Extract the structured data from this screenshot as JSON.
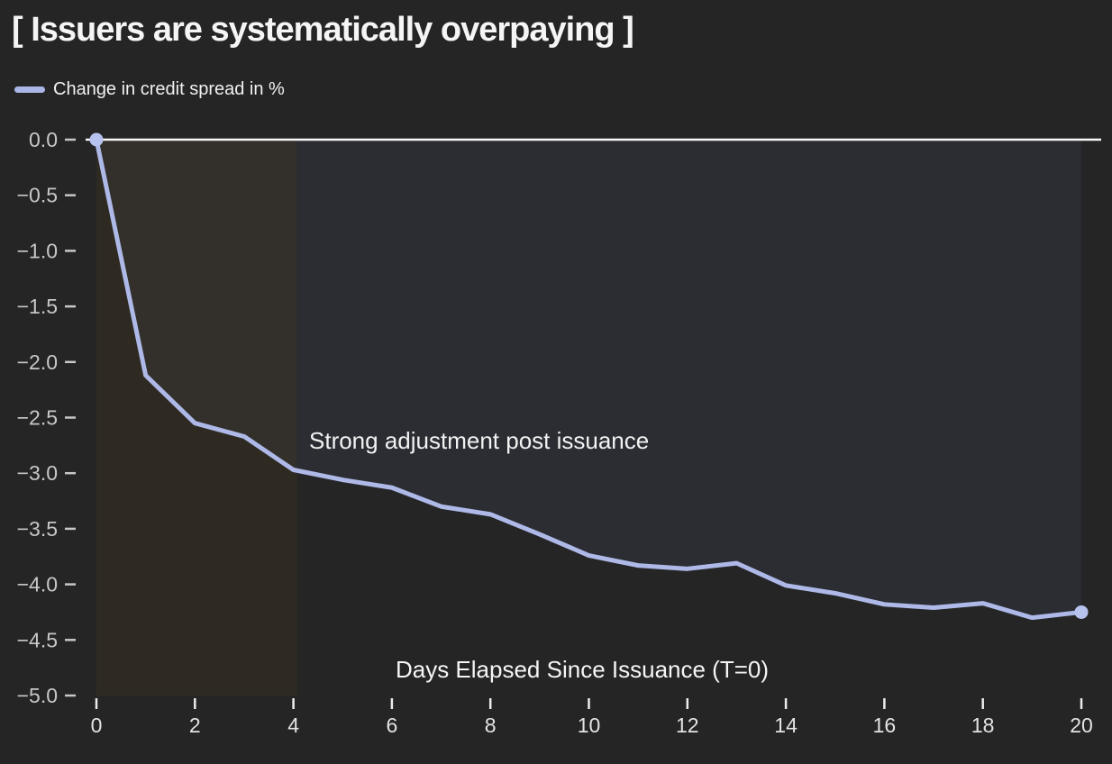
{
  "header": {
    "title": "[ Issuers are systematically overpaying ]"
  },
  "chart_data": {
    "type": "line",
    "title": "[ Issuers are systematically overpaying ]",
    "xlabel": "Days Elapsed Since Issuance (T=0)",
    "ylabel": "",
    "xlim": [
      0,
      20
    ],
    "ylim": [
      -5.0,
      0.0
    ],
    "grid": false,
    "legend_position": "top-left",
    "x_ticks": [
      0,
      2,
      4,
      6,
      8,
      10,
      12,
      14,
      16,
      18,
      20
    ],
    "y_ticks": [
      0.0,
      -0.5,
      -1.0,
      -1.5,
      -2.0,
      -2.5,
      -3.0,
      -3.5,
      -4.0,
      -4.5,
      -5.0
    ],
    "series": [
      {
        "name": "Change in credit spread in %",
        "x": [
          0,
          1,
          2,
          3,
          4,
          5,
          6,
          7,
          8,
          9,
          10,
          11,
          12,
          13,
          14,
          15,
          16,
          17,
          18,
          19,
          20
        ],
        "values": [
          0.0,
          -2.12,
          -2.55,
          -2.67,
          -2.97,
          -3.06,
          -3.13,
          -3.3,
          -3.37,
          -3.55,
          -3.74,
          -3.83,
          -3.86,
          -3.81,
          -4.01,
          -4.08,
          -4.18,
          -4.21,
          -4.17,
          -4.3,
          -4.25
        ],
        "markers": "first-and-last"
      }
    ],
    "annotations": [
      {
        "text": "Strong adjustment post issuance",
        "x": 4.3,
        "y": -2.7
      }
    ],
    "highlight_band": {
      "x0": 0,
      "x1": 4
    },
    "colors": {
      "background": "#252526",
      "line": "#aeb9e8",
      "marker": "#b7c2ef",
      "zero_line": "#f8f8f8",
      "area_fill": "#2b2d33",
      "band_fill": "#46391b",
      "band_opacity": 0.3,
      "y_tick": "#c7c7c7",
      "x_tick": "#ececec",
      "x_tick_label": "#e3e3e3"
    }
  }
}
